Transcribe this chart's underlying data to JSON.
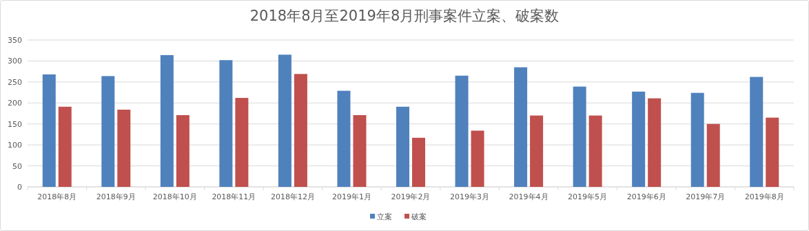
{
  "chart_data": {
    "type": "bar",
    "title": "2018年8月至2019年8月刑事案件立案、破案数",
    "categories": [
      "2018年8月",
      "2018年9月",
      "2018年10月",
      "2018年11月",
      "2018年12月",
      "2019年1月",
      "2019年2月",
      "2019年3月",
      "2019年4月",
      "2019年5月",
      "2019年6月",
      "2019年7月",
      "2019年8月"
    ],
    "series": [
      {
        "name": "立案",
        "color": "#4f81bd",
        "values": [
          268,
          264,
          314,
          302,
          315,
          229,
          191,
          265,
          285,
          239,
          227,
          224,
          262
        ]
      },
      {
        "name": "破案",
        "color": "#c0504d",
        "values": [
          191,
          184,
          171,
          212,
          269,
          171,
          117,
          134,
          170,
          170,
          211,
          150,
          165
        ]
      }
    ],
    "ylim": [
      0,
      350
    ],
    "yticks": [
      0,
      50,
      100,
      150,
      200,
      250,
      300,
      350
    ],
    "grid": "y",
    "legend": "bottom"
  }
}
